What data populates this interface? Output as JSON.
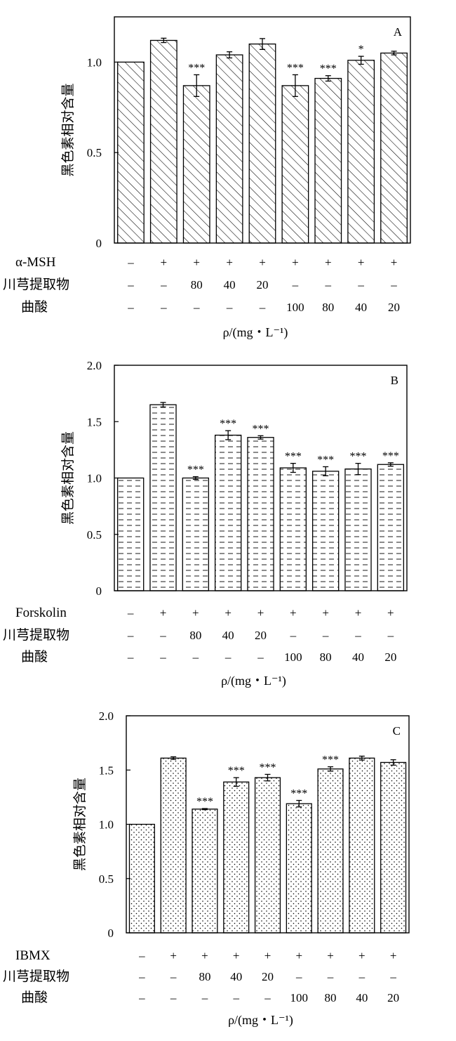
{
  "chart_data": [
    {
      "type": "bar",
      "panel_label": "A",
      "ylabel": "黑色素相对含量",
      "xlabel": "ρ/(mg・L⁻¹)",
      "ylim": [
        0,
        1.25
      ],
      "yticks": [
        0,
        0.5,
        1.0
      ],
      "ytick_labels": [
        "0",
        "0.5",
        "1.0"
      ],
      "pattern": "hatch",
      "grid": false,
      "legend": "none",
      "values": [
        1.0,
        1.12,
        0.87,
        1.04,
        1.1,
        0.87,
        0.91,
        1.01,
        1.05
      ],
      "errors": [
        0,
        0.012,
        0.06,
        0.017,
        0.03,
        0.06,
        0.015,
        0.022,
        0.01
      ],
      "significance": [
        "",
        "",
        "***",
        "",
        "",
        "***",
        "***",
        "*",
        ""
      ],
      "rows": [
        {
          "label": "α-MSH",
          "values": [
            "–",
            "+",
            "+",
            "+",
            "+",
            "+",
            "+",
            "+",
            "+"
          ]
        },
        {
          "label": "川芎提取物",
          "values": [
            "–",
            "–",
            "80",
            "40",
            "20",
            "–",
            "–",
            "–",
            "–"
          ]
        },
        {
          "label": "曲酸",
          "values": [
            "–",
            "–",
            "–",
            "–",
            "–",
            "100",
            "80",
            "40",
            "20"
          ]
        }
      ]
    },
    {
      "type": "bar",
      "panel_label": "B",
      "ylabel": "黑色素相对含量",
      "xlabel": "ρ/(mg・L⁻¹)",
      "ylim": [
        0,
        2.0
      ],
      "yticks": [
        0,
        0.5,
        1.0,
        1.5,
        2.0
      ],
      "ytick_labels": [
        "0",
        "0.5",
        "1.0",
        "1.5",
        "2.0"
      ],
      "pattern": "dash",
      "grid": false,
      "legend": "none",
      "values": [
        1.0,
        1.65,
        1.0,
        1.38,
        1.36,
        1.09,
        1.06,
        1.08,
        1.12
      ],
      "errors": [
        0,
        0.02,
        0.012,
        0.04,
        0.015,
        0.04,
        0.04,
        0.05,
        0.015
      ],
      "significance": [
        "",
        "",
        "***",
        "***",
        "***",
        "***",
        "***",
        "***",
        "***"
      ],
      "rows": [
        {
          "label": "Forskolin",
          "values": [
            "–",
            "+",
            "+",
            "+",
            "+",
            "+",
            "+",
            "+",
            "+"
          ]
        },
        {
          "label": "川芎提取物",
          "values": [
            "–",
            "–",
            "80",
            "40",
            "20",
            "–",
            "–",
            "–",
            "–"
          ]
        },
        {
          "label": "曲酸",
          "values": [
            "–",
            "–",
            "–",
            "–",
            "–",
            "100",
            "80",
            "40",
            "20"
          ]
        }
      ]
    },
    {
      "type": "bar",
      "panel_label": "C",
      "ylabel": "黑色素相对含量",
      "xlabel": "ρ/(mg・L⁻¹)",
      "ylim": [
        0,
        2.0
      ],
      "yticks": [
        0,
        0.5,
        1.0,
        1.5,
        2.0
      ],
      "ytick_labels": [
        "0",
        "0.5",
        "1.0",
        "1.5",
        "2.0"
      ],
      "pattern": "dots",
      "grid": false,
      "legend": "none",
      "values": [
        1.0,
        1.61,
        1.14,
        1.39,
        1.43,
        1.19,
        1.51,
        1.61,
        1.57
      ],
      "errors": [
        0,
        0.012,
        0.005,
        0.04,
        0.03,
        0.03,
        0.02,
        0.018,
        0.025
      ],
      "significance": [
        "",
        "",
        "***",
        "***",
        "***",
        "***",
        "***",
        "",
        ""
      ],
      "rows": [
        {
          "label": "IBMX",
          "values": [
            "–",
            "+",
            "+",
            "+",
            "+",
            "+",
            "+",
            "+",
            "+"
          ]
        },
        {
          "label": "川芎提取物",
          "values": [
            "–",
            "–",
            "80",
            "40",
            "20",
            "–",
            "–",
            "–",
            "–"
          ]
        },
        {
          "label": "曲酸",
          "values": [
            "–",
            "–",
            "–",
            "–",
            "–",
            "100",
            "80",
            "40",
            "20"
          ]
        }
      ]
    }
  ]
}
